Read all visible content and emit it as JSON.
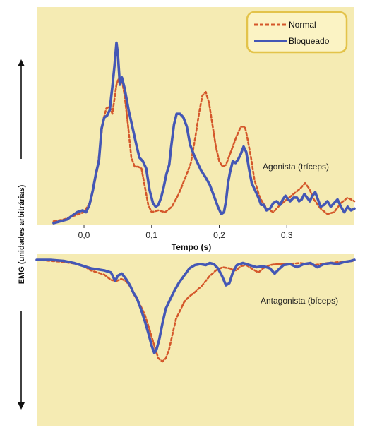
{
  "colors": {
    "panel_bg": "#f5ebb3",
    "legend_bg": "#fbf3c4",
    "legend_border": "#e3c34a",
    "normal": "#d4572a",
    "blocked": "#4457b5"
  },
  "chart_data": [
    {
      "type": "line",
      "panel": "agonist",
      "annotation": "Agonista (tríceps)",
      "xlabel": "Tempo (s)",
      "ylabel": "EMG (unidades arbitrárias)",
      "xlim": [
        -0.07,
        0.4
      ],
      "ylim": [
        0,
        1
      ],
      "x_ticks": [
        0.0,
        0.1,
        0.2,
        0.3
      ],
      "x_tick_labels": [
        "0,0",
        "0,1",
        "0,2",
        "0,3"
      ],
      "legend": {
        "position": "top-right",
        "entries": [
          "Normal",
          "Bloqueado"
        ]
      },
      "series": [
        {
          "name": "Normal",
          "style": "dashed",
          "points": [
            [
              -0.045,
              0.01
            ],
            [
              -0.03,
              0.02
            ],
            [
              -0.015,
              0.04
            ],
            [
              0.0,
              0.06
            ],
            [
              0.01,
              0.12
            ],
            [
              0.02,
              0.3
            ],
            [
              0.028,
              0.56
            ],
            [
              0.033,
              0.63
            ],
            [
              0.038,
              0.64
            ],
            [
              0.042,
              0.6
            ],
            [
              0.048,
              0.76
            ],
            [
              0.052,
              0.8
            ],
            [
              0.056,
              0.79
            ],
            [
              0.06,
              0.7
            ],
            [
              0.065,
              0.54
            ],
            [
              0.07,
              0.36
            ],
            [
              0.075,
              0.31
            ],
            [
              0.08,
              0.31
            ],
            [
              0.085,
              0.3
            ],
            [
              0.09,
              0.2
            ],
            [
              0.095,
              0.1
            ],
            [
              0.1,
              0.06
            ],
            [
              0.11,
              0.07
            ],
            [
              0.12,
              0.06
            ],
            [
              0.13,
              0.09
            ],
            [
              0.14,
              0.16
            ],
            [
              0.15,
              0.25
            ],
            [
              0.158,
              0.33
            ],
            [
              0.165,
              0.48
            ],
            [
              0.17,
              0.6
            ],
            [
              0.175,
              0.7
            ],
            [
              0.18,
              0.72
            ],
            [
              0.185,
              0.66
            ],
            [
              0.19,
              0.54
            ],
            [
              0.195,
              0.42
            ],
            [
              0.2,
              0.34
            ],
            [
              0.205,
              0.31
            ],
            [
              0.21,
              0.32
            ],
            [
              0.215,
              0.37
            ],
            [
              0.22,
              0.42
            ],
            [
              0.225,
              0.47
            ],
            [
              0.232,
              0.53
            ],
            [
              0.238,
              0.53
            ],
            [
              0.242,
              0.46
            ],
            [
              0.247,
              0.36
            ],
            [
              0.252,
              0.24
            ],
            [
              0.26,
              0.14
            ],
            [
              0.27,
              0.08
            ],
            [
              0.28,
              0.06
            ],
            [
              0.29,
              0.1
            ],
            [
              0.3,
              0.13
            ],
            [
              0.31,
              0.16
            ],
            [
              0.32,
              0.19
            ],
            [
              0.327,
              0.22
            ],
            [
              0.333,
              0.19
            ],
            [
              0.34,
              0.13
            ],
            [
              0.35,
              0.08
            ],
            [
              0.36,
              0.05
            ],
            [
              0.37,
              0.06
            ],
            [
              0.38,
              0.11
            ],
            [
              0.39,
              0.14
            ],
            [
              0.4,
              0.12
            ]
          ]
        },
        {
          "name": "Bloqueado",
          "style": "solid",
          "points": [
            [
              -0.045,
              0.0
            ],
            [
              -0.035,
              0.01
            ],
            [
              -0.025,
              0.02
            ],
            [
              -0.018,
              0.04
            ],
            [
              -0.01,
              0.06
            ],
            [
              -0.002,
              0.07
            ],
            [
              0.003,
              0.06
            ],
            [
              0.008,
              0.1
            ],
            [
              0.013,
              0.18
            ],
            [
              0.018,
              0.28
            ],
            [
              0.022,
              0.34
            ],
            [
              0.026,
              0.52
            ],
            [
              0.03,
              0.58
            ],
            [
              0.034,
              0.59
            ],
            [
              0.038,
              0.62
            ],
            [
              0.042,
              0.75
            ],
            [
              0.045,
              0.86
            ],
            [
              0.048,
              0.99
            ],
            [
              0.05,
              0.93
            ],
            [
              0.053,
              0.76
            ],
            [
              0.056,
              0.8
            ],
            [
              0.06,
              0.74
            ],
            [
              0.066,
              0.62
            ],
            [
              0.072,
              0.52
            ],
            [
              0.078,
              0.42
            ],
            [
              0.082,
              0.36
            ],
            [
              0.087,
              0.34
            ],
            [
              0.092,
              0.3
            ],
            [
              0.097,
              0.18
            ],
            [
              0.102,
              0.11
            ],
            [
              0.106,
              0.09
            ],
            [
              0.11,
              0.1
            ],
            [
              0.114,
              0.14
            ],
            [
              0.118,
              0.2
            ],
            [
              0.122,
              0.27
            ],
            [
              0.126,
              0.32
            ],
            [
              0.129,
              0.42
            ],
            [
              0.133,
              0.54
            ],
            [
              0.137,
              0.6
            ],
            [
              0.142,
              0.6
            ],
            [
              0.147,
              0.58
            ],
            [
              0.152,
              0.53
            ],
            [
              0.157,
              0.43
            ],
            [
              0.163,
              0.37
            ],
            [
              0.168,
              0.33
            ],
            [
              0.173,
              0.29
            ],
            [
              0.18,
              0.25
            ],
            [
              0.186,
              0.21
            ],
            [
              0.192,
              0.15
            ],
            [
              0.198,
              0.09
            ],
            [
              0.203,
              0.05
            ],
            [
              0.207,
              0.06
            ],
            [
              0.21,
              0.12
            ],
            [
              0.213,
              0.22
            ],
            [
              0.216,
              0.28
            ],
            [
              0.22,
              0.34
            ],
            [
              0.224,
              0.33
            ],
            [
              0.228,
              0.35
            ],
            [
              0.232,
              0.38
            ],
            [
              0.236,
              0.42
            ],
            [
              0.24,
              0.39
            ],
            [
              0.244,
              0.3
            ],
            [
              0.248,
              0.22
            ],
            [
              0.253,
              0.18
            ],
            [
              0.258,
              0.14
            ],
            [
              0.262,
              0.1
            ],
            [
              0.266,
              0.1
            ],
            [
              0.27,
              0.07
            ],
            [
              0.275,
              0.08
            ],
            [
              0.28,
              0.11
            ],
            [
              0.285,
              0.12
            ],
            [
              0.29,
              0.1
            ],
            [
              0.294,
              0.13
            ],
            [
              0.298,
              0.15
            ],
            [
              0.302,
              0.13
            ],
            [
              0.305,
              0.12
            ],
            [
              0.31,
              0.14
            ],
            [
              0.315,
              0.14
            ],
            [
              0.318,
              0.12
            ],
            [
              0.322,
              0.13
            ],
            [
              0.326,
              0.16
            ],
            [
              0.33,
              0.14
            ],
            [
              0.334,
              0.12
            ],
            [
              0.338,
              0.15
            ],
            [
              0.342,
              0.17
            ],
            [
              0.346,
              0.13
            ],
            [
              0.35,
              0.09
            ],
            [
              0.355,
              0.1
            ],
            [
              0.36,
              0.12
            ],
            [
              0.365,
              0.09
            ],
            [
              0.37,
              0.11
            ],
            [
              0.375,
              0.13
            ],
            [
              0.38,
              0.09
            ],
            [
              0.385,
              0.06
            ],
            [
              0.39,
              0.09
            ],
            [
              0.395,
              0.07
            ],
            [
              0.4,
              0.08
            ]
          ]
        }
      ]
    },
    {
      "type": "line",
      "panel": "antagonist",
      "annotation": "Antagonista (bíceps)",
      "xlim": [
        -0.07,
        0.4
      ],
      "ylim": [
        -1,
        0
      ],
      "series": [
        {
          "name": "Normal",
          "style": "dashed",
          "points": [
            [
              -0.07,
              0.0
            ],
            [
              -0.05,
              -0.01
            ],
            [
              -0.03,
              -0.02
            ],
            [
              -0.01,
              -0.04
            ],
            [
              0.0,
              -0.06
            ],
            [
              0.01,
              -0.1
            ],
            [
              0.02,
              -0.12
            ],
            [
              0.03,
              -0.14
            ],
            [
              0.04,
              -0.19
            ],
            [
              0.048,
              -0.2
            ],
            [
              0.055,
              -0.18
            ],
            [
              0.062,
              -0.2
            ],
            [
              0.068,
              -0.25
            ],
            [
              0.075,
              -0.34
            ],
            [
              0.082,
              -0.41
            ],
            [
              0.09,
              -0.52
            ],
            [
              0.097,
              -0.66
            ],
            [
              0.104,
              -0.81
            ],
            [
              0.11,
              -0.93
            ],
            [
              0.116,
              -0.96
            ],
            [
              0.121,
              -0.93
            ],
            [
              0.126,
              -0.84
            ],
            [
              0.131,
              -0.7
            ],
            [
              0.136,
              -0.56
            ],
            [
              0.142,
              -0.48
            ],
            [
              0.148,
              -0.4
            ],
            [
              0.155,
              -0.35
            ],
            [
              0.165,
              -0.3
            ],
            [
              0.175,
              -0.24
            ],
            [
              0.185,
              -0.16
            ],
            [
              0.195,
              -0.1
            ],
            [
              0.205,
              -0.07
            ],
            [
              0.215,
              -0.08
            ],
            [
              0.225,
              -0.1
            ],
            [
              0.232,
              -0.06
            ],
            [
              0.24,
              -0.05
            ],
            [
              0.25,
              -0.09
            ],
            [
              0.258,
              -0.12
            ],
            [
              0.265,
              -0.08
            ],
            [
              0.275,
              -0.05
            ],
            [
              0.285,
              -0.04
            ],
            [
              0.3,
              -0.04
            ],
            [
              0.32,
              -0.03
            ],
            [
              0.34,
              -0.05
            ],
            [
              0.36,
              -0.03
            ],
            [
              0.38,
              -0.02
            ],
            [
              0.4,
              -0.01
            ]
          ]
        },
        {
          "name": "Bloqueado",
          "style": "solid",
          "points": [
            [
              -0.07,
              0.0
            ],
            [
              -0.05,
              0.0
            ],
            [
              -0.03,
              -0.01
            ],
            [
              -0.015,
              -0.03
            ],
            [
              0.0,
              -0.06
            ],
            [
              0.01,
              -0.08
            ],
            [
              0.02,
              -0.09
            ],
            [
              0.03,
              -0.1
            ],
            [
              0.04,
              -0.12
            ],
            [
              0.046,
              -0.2
            ],
            [
              0.05,
              -0.15
            ],
            [
              0.056,
              -0.13
            ],
            [
              0.062,
              -0.18
            ],
            [
              0.068,
              -0.24
            ],
            [
              0.073,
              -0.31
            ],
            [
              0.078,
              -0.36
            ],
            [
              0.084,
              -0.46
            ],
            [
              0.09,
              -0.58
            ],
            [
              0.096,
              -0.71
            ],
            [
              0.1,
              -0.81
            ],
            [
              0.104,
              -0.88
            ],
            [
              0.107,
              -0.85
            ],
            [
              0.111,
              -0.76
            ],
            [
              0.116,
              -0.6
            ],
            [
              0.121,
              -0.46
            ],
            [
              0.127,
              -0.38
            ],
            [
              0.133,
              -0.3
            ],
            [
              0.14,
              -0.22
            ],
            [
              0.148,
              -0.15
            ],
            [
              0.156,
              -0.08
            ],
            [
              0.164,
              -0.05
            ],
            [
              0.172,
              -0.04
            ],
            [
              0.18,
              -0.05
            ],
            [
              0.186,
              -0.03
            ],
            [
              0.192,
              -0.04
            ],
            [
              0.198,
              -0.08
            ],
            [
              0.204,
              -0.15
            ],
            [
              0.21,
              -0.24
            ],
            [
              0.215,
              -0.22
            ],
            [
              0.22,
              -0.12
            ],
            [
              0.226,
              -0.05
            ],
            [
              0.235,
              -0.03
            ],
            [
              0.245,
              -0.05
            ],
            [
              0.255,
              -0.07
            ],
            [
              0.265,
              -0.06
            ],
            [
              0.275,
              -0.08
            ],
            [
              0.282,
              -0.13
            ],
            [
              0.288,
              -0.09
            ],
            [
              0.295,
              -0.05
            ],
            [
              0.305,
              -0.04
            ],
            [
              0.315,
              -0.07
            ],
            [
              0.325,
              -0.04
            ],
            [
              0.335,
              -0.03
            ],
            [
              0.345,
              -0.07
            ],
            [
              0.355,
              -0.04
            ],
            [
              0.365,
              -0.03
            ],
            [
              0.375,
              -0.04
            ],
            [
              0.385,
              -0.02
            ],
            [
              0.395,
              -0.01
            ],
            [
              0.4,
              0.0
            ]
          ]
        }
      ]
    }
  ]
}
